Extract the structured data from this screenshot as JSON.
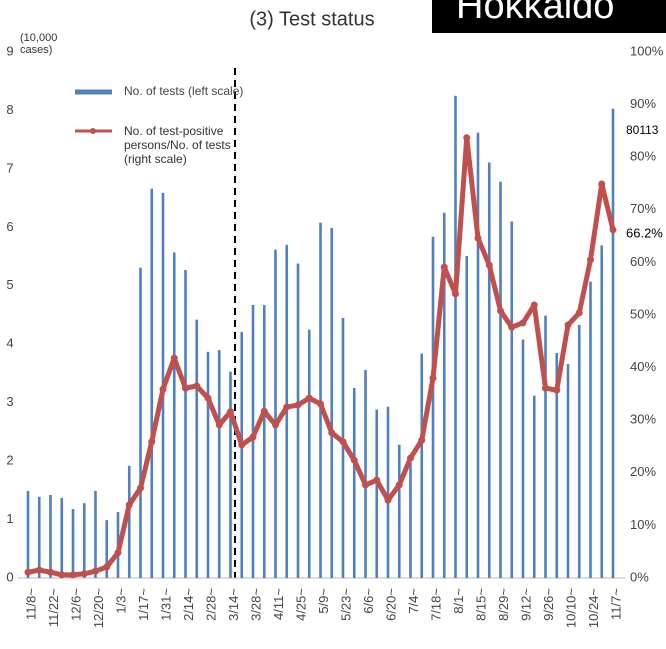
{
  "chart_data": {
    "type": "bar_line",
    "title": "(3) Test status",
    "region": "Hokkaido",
    "y_label": "(10,000 cases)",
    "categories": [
      "11/8~",
      null,
      "11/22~",
      null,
      "12/6~",
      null,
      "12/20~",
      null,
      "1/3~",
      null,
      "1/17~",
      null,
      "1/31~",
      null,
      "2/14~",
      null,
      "2/28~",
      null,
      "3/14~",
      null,
      "3/28~",
      null,
      "4/11~",
      null,
      "4/25~",
      null,
      "5/9~",
      null,
      "5/23~",
      null,
      "6/6~",
      null,
      "6/20~",
      null,
      "7/4~",
      null,
      "7/18~",
      null,
      "8/1~",
      null,
      "8/15~",
      null,
      "8/29~",
      null,
      "9/12~",
      null,
      "9/26~",
      null,
      "10/10~",
      null,
      "10/24~",
      null,
      "11/7~"
    ],
    "series": [
      {
        "name": "No. of tests (left scale)",
        "color": "#4f81bd",
        "kind": "bar",
        "values": [
          1.49,
          1.39,
          1.42,
          1.37,
          1.18,
          1.28,
          1.49,
          0.99,
          1.13,
          1.92,
          5.31,
          6.66,
          6.59,
          5.57,
          5.27,
          4.42,
          3.87,
          3.9,
          3.53,
          4.21,
          4.67,
          4.67,
          5.62,
          5.7,
          5.38,
          4.25,
          6.08,
          5.99,
          4.45,
          3.25,
          3.56,
          2.88,
          2.93,
          2.28,
          1.97,
          3.84,
          5.84,
          6.25,
          8.25,
          5.51,
          7.62,
          7.11,
          6.78,
          6.1,
          4.08,
          3.12,
          4.49,
          3.85,
          3.66,
          4.33,
          5.07,
          5.69,
          8.03
        ]
      },
      {
        "name": "No. of test-positive persons/No. of tests (right scale)",
        "color": "#c0504d",
        "kind": "line",
        "axis": "y2",
        "values": [
          1.1,
          1.5,
          1.1,
          0.6,
          0.6,
          0.8,
          1.3,
          2.1,
          4.8,
          13.9,
          17.1,
          25.9,
          35.9,
          41.8,
          36.1,
          36.5,
          34.2,
          29.1,
          31.6,
          25.3,
          26.8,
          31.7,
          29.1,
          32.5,
          32.9,
          34.2,
          33.1,
          27.6,
          25.9,
          22.4,
          17.7,
          18.6,
          14.8,
          17.7,
          22.8,
          26.2,
          38.0,
          59.1,
          54.0,
          83.7,
          64.6,
          59.5,
          50.8,
          47.7,
          48.5,
          51.9,
          36.1,
          35.7,
          48.1,
          50.4,
          60.5,
          74.9,
          66.2
        ]
      }
    ],
    "annotations": [
      "80113",
      "66.2%"
    ],
    "ylim": [
      0,
      9
    ],
    "yticks": [
      0,
      1,
      2,
      3,
      4,
      5,
      6,
      7,
      8,
      9
    ],
    "y2lim": [
      0,
      100
    ],
    "y2ticks": [
      {
        "value": 0,
        "label": "0%"
      },
      {
        "value": 10,
        "label": "10%"
      },
      {
        "value": 20,
        "label": "20%"
      },
      {
        "value": 30,
        "label": "30%"
      },
      {
        "value": 40,
        "label": "40%"
      },
      {
        "value": 50,
        "label": "50%"
      },
      {
        "value": 60,
        "label": "60%"
      },
      {
        "value": 70,
        "label": "70%"
      },
      {
        "value": 80,
        "label": "80%"
      },
      {
        "value": 90,
        "label": "90%"
      },
      {
        "value": 100,
        "label": "100%"
      }
    ]
  }
}
